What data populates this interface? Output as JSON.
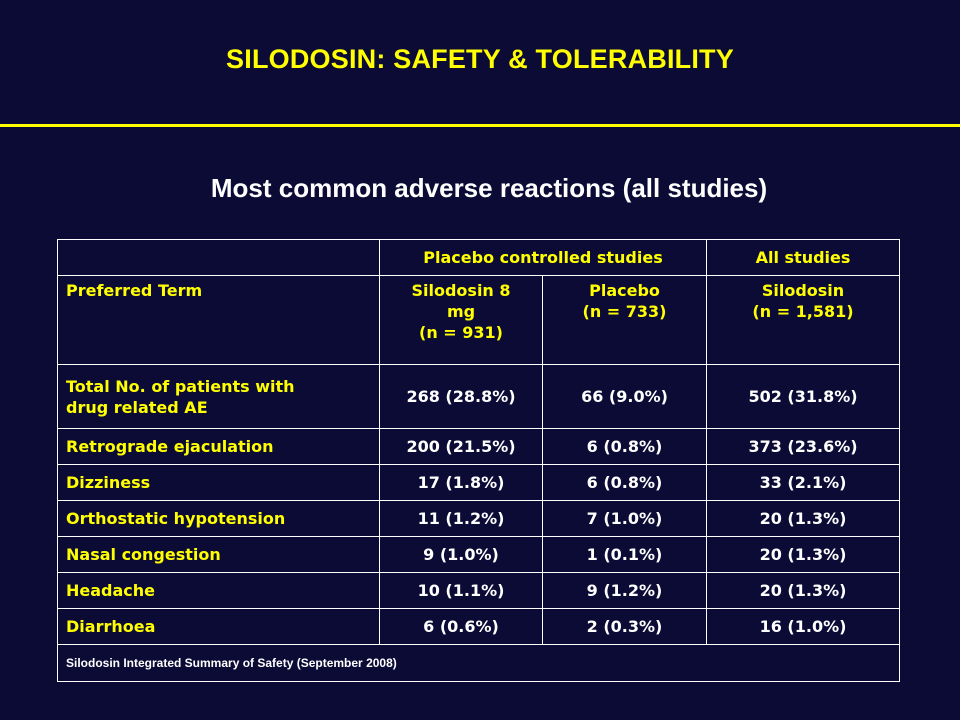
{
  "title": "SILODOSIN:  SAFETY & TOLERABILITY",
  "subtitle": "Most common adverse reactions (all studies)",
  "table": {
    "group_headers": {
      "placebo_controlled": "Placebo controlled studies",
      "all_studies": "All studies"
    },
    "column_headers": {
      "term": "Preferred Term",
      "silodosin_8mg": [
        "Silodosin 8",
        "mg",
        "(n = 931)"
      ],
      "placebo": [
        "Placebo",
        "(n = 733)"
      ],
      "silodosin_all": [
        "Silodosin",
        "(n = 1,581)"
      ]
    },
    "rows": [
      {
        "term": [
          "Total No. of patients with",
          "drug related AE"
        ],
        "silodosin_8mg": "268 (28.8%)",
        "placebo": "66 (9.0%)",
        "silodosin_all": "502 (31.8%)"
      },
      {
        "term": [
          "Retrograde ejaculation"
        ],
        "silodosin_8mg": "200 (21.5%)",
        "placebo": "6 (0.8%)",
        "silodosin_all": "373 (23.6%)"
      },
      {
        "term": [
          "Dizziness"
        ],
        "silodosin_8mg": "17 (1.8%)",
        "placebo": "6 (0.8%)",
        "silodosin_all": "33 (2.1%)"
      },
      {
        "term": [
          "Orthostatic hypotension"
        ],
        "silodosin_8mg": "11 (1.2%)",
        "placebo": "7 (1.0%)",
        "silodosin_all": "20 (1.3%)"
      },
      {
        "term": [
          "Nasal congestion"
        ],
        "silodosin_8mg": "9 (1.0%)",
        "placebo": "1 (0.1%)",
        "silodosin_all": "20 (1.3%)"
      },
      {
        "term": [
          "Headache"
        ],
        "silodosin_8mg": "10 (1.1%)",
        "placebo": "9 (1.2%)",
        "silodosin_all": "20 (1.3%)"
      },
      {
        "term": [
          "Diarrhoea"
        ],
        "silodosin_8mg": "6 (0.6%)",
        "placebo": "2 (0.3%)",
        "silodosin_all": "16 (1.0%)"
      }
    ],
    "footnote": "Silodosin Integrated Summary of Safety (September 2008)"
  },
  "colors": {
    "background": "#0b0b36",
    "accent": "#ffff00",
    "text": "#ffffff"
  }
}
